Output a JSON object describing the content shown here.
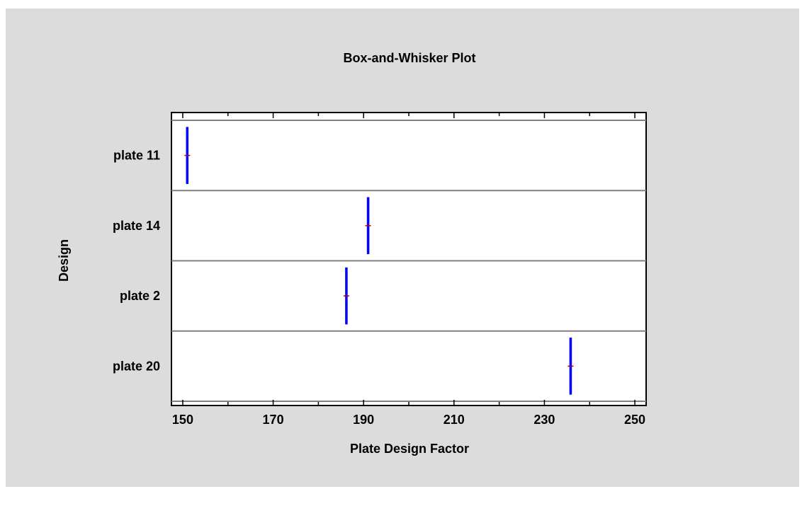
{
  "chart_data": {
    "type": "box",
    "title": "Box-and-Whisker Plot",
    "xlabel": "Plate Design Factor",
    "ylabel": "Design",
    "xlim": [
      147.5,
      252.5
    ],
    "xticks": [
      150,
      170,
      190,
      210,
      230,
      250
    ],
    "grid": false,
    "categories": [
      "plate 11",
      "plate 14",
      "plate 2",
      "plate 20"
    ],
    "boxes": [
      {
        "name": "plate 11",
        "min": 151.0,
        "q1": 151.0,
        "median": 151.0,
        "q3": 151.0,
        "max": 151.0,
        "mean": 151.0
      },
      {
        "name": "plate 14",
        "min": 191.0,
        "q1": 191.0,
        "median": 191.0,
        "q3": 191.0,
        "max": 191.0,
        "mean": 191.0
      },
      {
        "name": "plate 2",
        "min": 186.2,
        "q1": 186.2,
        "median": 186.2,
        "q3": 186.2,
        "max": 186.2,
        "mean": 186.2
      },
      {
        "name": "plate 20",
        "min": 235.8,
        "q1": 235.8,
        "median": 235.8,
        "q3": 235.8,
        "max": 235.8,
        "mean": 235.8
      }
    ],
    "colors": {
      "background": "#dcdcdc",
      "plot_area": "#ffffff",
      "box": "#0000ff",
      "mean_marker": "#b40000",
      "divider": "#808080"
    }
  }
}
